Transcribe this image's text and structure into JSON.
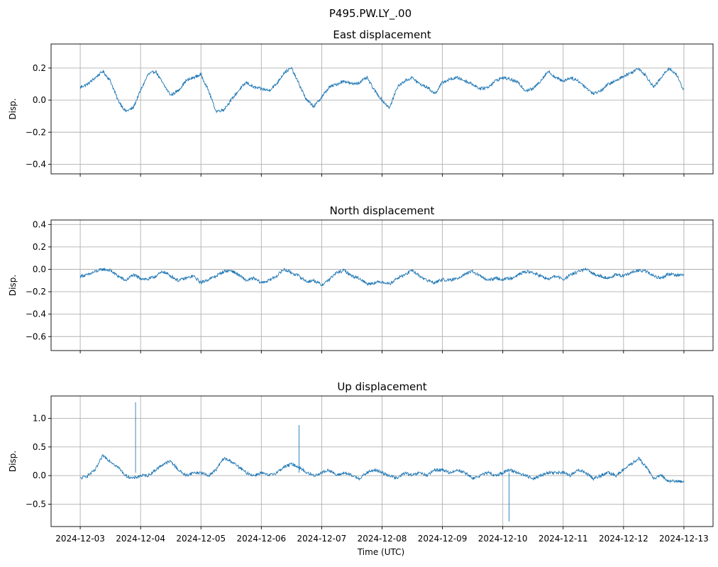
{
  "figure": {
    "suptitle": "P495.PW.LY_.00",
    "xlabel": "Time (UTC)",
    "line_color": "#1f77b4",
    "grid_color": "#b0b0b0"
  },
  "chart_data": [
    {
      "type": "line",
      "title": "East displacement",
      "ylabel": "Disp.",
      "xlabel": "",
      "grid": true,
      "xlim": [
        "2024-12-02 12:25",
        "2024-12-13 11:35"
      ],
      "ylim": [
        -0.46,
        0.35
      ],
      "yticks": [
        0.2,
        0.0,
        -0.2,
        -0.4
      ],
      "ytick_labels": [
        "0.2",
        "0.0",
        "−0.2",
        "−0.4"
      ],
      "xticks": [
        "2024-12-03",
        "2024-12-04",
        "2024-12-05",
        "2024-12-06",
        "2024-12-07",
        "2024-12-08",
        "2024-12-09",
        "2024-12-10",
        "2024-12-11",
        "2024-12-12",
        "2024-12-13"
      ],
      "xtick_labels_shown": false,
      "series": [
        {
          "x": [
            "2024-12-03 00:00",
            "2024-12-03 03:00",
            "2024-12-03 06:00",
            "2024-12-03 09:00",
            "2024-12-03 12:00",
            "2024-12-03 15:00",
            "2024-12-03 18:00",
            "2024-12-03 21:00",
            "2024-12-04 00:00",
            "2024-12-04 03:00",
            "2024-12-04 06:00",
            "2024-12-04 09:00",
            "2024-12-04 12:00",
            "2024-12-04 15:00",
            "2024-12-04 18:00",
            "2024-12-04 21:00",
            "2024-12-05 00:00",
            "2024-12-05 03:00",
            "2024-12-05 06:00",
            "2024-12-05 09:00",
            "2024-12-05 12:00",
            "2024-12-05 15:00",
            "2024-12-05 18:00",
            "2024-12-05 21:00",
            "2024-12-06 00:00",
            "2024-12-06 03:00",
            "2024-12-06 06:00",
            "2024-12-06 09:00",
            "2024-12-06 12:00",
            "2024-12-06 15:00",
            "2024-12-06 18:00",
            "2024-12-06 21:00",
            "2024-12-07 00:00",
            "2024-12-07 03:00",
            "2024-12-07 06:00",
            "2024-12-07 09:00",
            "2024-12-07 12:00",
            "2024-12-07 15:00",
            "2024-12-07 18:00",
            "2024-12-07 21:00",
            "2024-12-08 00:00",
            "2024-12-08 03:00",
            "2024-12-08 06:00",
            "2024-12-08 09:00",
            "2024-12-08 12:00",
            "2024-12-08 15:00",
            "2024-12-08 18:00",
            "2024-12-08 21:00",
            "2024-12-09 00:00",
            "2024-12-09 03:00",
            "2024-12-09 06:00",
            "2024-12-09 09:00",
            "2024-12-09 12:00",
            "2024-12-09 15:00",
            "2024-12-09 18:00",
            "2024-12-09 21:00",
            "2024-12-10 00:00",
            "2024-12-10 03:00",
            "2024-12-10 06:00",
            "2024-12-10 09:00",
            "2024-12-10 12:00",
            "2024-12-10 15:00",
            "2024-12-10 18:00",
            "2024-12-10 21:00",
            "2024-12-11 00:00",
            "2024-12-11 03:00",
            "2024-12-11 06:00",
            "2024-12-11 09:00",
            "2024-12-11 12:00",
            "2024-12-11 15:00",
            "2024-12-11 18:00",
            "2024-12-11 21:00",
            "2024-12-12 00:00",
            "2024-12-12 03:00",
            "2024-12-12 06:00",
            "2024-12-12 09:00",
            "2024-12-12 12:00",
            "2024-12-12 15:00",
            "2024-12-12 18:00",
            "2024-12-12 21:00",
            "2024-12-13 00:00"
          ],
          "y": [
            0.08,
            0.1,
            0.14,
            0.18,
            0.12,
            0.0,
            -0.07,
            -0.05,
            0.06,
            0.16,
            0.18,
            0.1,
            0.03,
            0.06,
            0.12,
            0.14,
            0.16,
            0.06,
            -0.07,
            -0.06,
            0.0,
            0.06,
            0.11,
            0.08,
            0.07,
            0.06,
            0.1,
            0.17,
            0.2,
            0.1,
            0.0,
            -0.04,
            0.02,
            0.08,
            0.1,
            0.12,
            0.1,
            0.11,
            0.14,
            0.06,
            0.0,
            -0.05,
            0.08,
            0.12,
            0.14,
            0.1,
            0.08,
            0.04,
            0.11,
            0.13,
            0.14,
            0.12,
            0.1,
            0.07,
            0.08,
            0.12,
            0.14,
            0.13,
            0.11,
            0.06,
            0.07,
            0.12,
            0.18,
            0.14,
            0.12,
            0.14,
            0.12,
            0.08,
            0.04,
            0.06,
            0.1,
            0.12,
            0.15,
            0.17,
            0.2,
            0.15,
            0.08,
            0.14,
            0.2,
            0.16,
            0.06
          ]
        }
      ]
    },
    {
      "type": "line",
      "title": "North displacement",
      "ylabel": "Disp.",
      "xlabel": "",
      "grid": true,
      "xlim": [
        "2024-12-02 12:25",
        "2024-12-13 11:35"
      ],
      "ylim": [
        -0.725,
        0.44
      ],
      "yticks": [
        0.4,
        0.2,
        0.0,
        -0.2,
        -0.4,
        -0.6
      ],
      "ytick_labels": [
        "0.4",
        "0.2",
        "0.0",
        "−0.2",
        "−0.4",
        "−0.6"
      ],
      "xticks": [
        "2024-12-03",
        "2024-12-04",
        "2024-12-05",
        "2024-12-06",
        "2024-12-07",
        "2024-12-08",
        "2024-12-09",
        "2024-12-10",
        "2024-12-11",
        "2024-12-12",
        "2024-12-13"
      ],
      "xtick_labels_shown": false,
      "series": [
        {
          "x": [
            "2024-12-03 00:00",
            "2024-12-03 03:00",
            "2024-12-03 06:00",
            "2024-12-03 09:00",
            "2024-12-03 12:00",
            "2024-12-03 15:00",
            "2024-12-03 18:00",
            "2024-12-03 21:00",
            "2024-12-04 00:00",
            "2024-12-04 03:00",
            "2024-12-04 06:00",
            "2024-12-04 09:00",
            "2024-12-04 12:00",
            "2024-12-04 15:00",
            "2024-12-04 18:00",
            "2024-12-04 21:00",
            "2024-12-05 00:00",
            "2024-12-05 03:00",
            "2024-12-05 06:00",
            "2024-12-05 09:00",
            "2024-12-05 12:00",
            "2024-12-05 15:00",
            "2024-12-05 18:00",
            "2024-12-05 21:00",
            "2024-12-06 00:00",
            "2024-12-06 03:00",
            "2024-12-06 06:00",
            "2024-12-06 09:00",
            "2024-12-06 12:00",
            "2024-12-06 15:00",
            "2024-12-06 18:00",
            "2024-12-06 21:00",
            "2024-12-07 00:00",
            "2024-12-07 03:00",
            "2024-12-07 06:00",
            "2024-12-07 09:00",
            "2024-12-07 12:00",
            "2024-12-07 15:00",
            "2024-12-07 18:00",
            "2024-12-07 21:00",
            "2024-12-08 00:00",
            "2024-12-08 03:00",
            "2024-12-08 06:00",
            "2024-12-08 09:00",
            "2024-12-08 12:00",
            "2024-12-08 15:00",
            "2024-12-08 18:00",
            "2024-12-08 21:00",
            "2024-12-09 00:00",
            "2024-12-09 03:00",
            "2024-12-09 06:00",
            "2024-12-09 09:00",
            "2024-12-09 12:00",
            "2024-12-09 15:00",
            "2024-12-09 18:00",
            "2024-12-09 21:00",
            "2024-12-10 00:00",
            "2024-12-10 03:00",
            "2024-12-10 06:00",
            "2024-12-10 09:00",
            "2024-12-10 12:00",
            "2024-12-10 15:00",
            "2024-12-10 18:00",
            "2024-12-10 21:00",
            "2024-12-11 00:00",
            "2024-12-11 03:00",
            "2024-12-11 06:00",
            "2024-12-11 09:00",
            "2024-12-11 12:00",
            "2024-12-11 15:00",
            "2024-12-11 18:00",
            "2024-12-11 21:00",
            "2024-12-12 00:00",
            "2024-12-12 03:00",
            "2024-12-12 06:00",
            "2024-12-12 09:00",
            "2024-12-12 12:00",
            "2024-12-12 15:00",
            "2024-12-12 18:00",
            "2024-12-12 21:00",
            "2024-12-13 00:00"
          ],
          "y": [
            -0.06,
            -0.05,
            -0.02,
            0.0,
            -0.01,
            -0.06,
            -0.1,
            -0.05,
            -0.08,
            -0.09,
            -0.06,
            -0.02,
            -0.06,
            -0.1,
            -0.08,
            -0.06,
            -0.12,
            -0.09,
            -0.06,
            -0.02,
            -0.01,
            -0.05,
            -0.1,
            -0.08,
            -0.12,
            -0.1,
            -0.06,
            0.0,
            -0.03,
            -0.06,
            -0.11,
            -0.1,
            -0.14,
            -0.09,
            -0.03,
            -0.01,
            -0.06,
            -0.08,
            -0.13,
            -0.12,
            -0.11,
            -0.13,
            -0.08,
            -0.05,
            -0.01,
            -0.06,
            -0.1,
            -0.12,
            -0.09,
            -0.1,
            -0.08,
            -0.04,
            -0.02,
            -0.06,
            -0.1,
            -0.08,
            -0.09,
            -0.08,
            -0.05,
            -0.02,
            -0.03,
            -0.06,
            -0.09,
            -0.06,
            -0.09,
            -0.05,
            -0.02,
            0.0,
            -0.04,
            -0.06,
            -0.08,
            -0.05,
            -0.06,
            -0.03,
            -0.01,
            -0.02,
            -0.06,
            -0.08,
            -0.04,
            -0.05,
            -0.05
          ]
        }
      ]
    },
    {
      "type": "line",
      "title": "Up displacement",
      "ylabel": "Disp.",
      "xlabel": "Time (UTC)",
      "grid": true,
      "xlim": [
        "2024-12-02 12:25",
        "2024-12-13 11:35"
      ],
      "ylim": [
        -0.89,
        1.39
      ],
      "yticks": [
        1.0,
        0.5,
        0.0,
        -0.5
      ],
      "ytick_labels": [
        "1.0",
        "0.5",
        "0.0",
        "−0.5"
      ],
      "xticks": [
        "2024-12-03",
        "2024-12-04",
        "2024-12-05",
        "2024-12-06",
        "2024-12-07",
        "2024-12-08",
        "2024-12-09",
        "2024-12-10",
        "2024-12-11",
        "2024-12-12",
        "2024-12-13"
      ],
      "xtick_labels": [
        "2024-12-03",
        "2024-12-04",
        "2024-12-05",
        "2024-12-06",
        "2024-12-07",
        "2024-12-08",
        "2024-12-09",
        "2024-12-10",
        "2024-12-11",
        "2024-12-12",
        "2024-12-13"
      ],
      "xtick_labels_shown": true,
      "series": [
        {
          "x": [
            "2024-12-03 00:00",
            "2024-12-03 03:00",
            "2024-12-03 06:00",
            "2024-12-03 09:00",
            "2024-12-03 12:00",
            "2024-12-03 15:00",
            "2024-12-03 18:00",
            "2024-12-03 21:00",
            "2024-12-04 00:00",
            "2024-12-04 03:00",
            "2024-12-04 06:00",
            "2024-12-04 09:00",
            "2024-12-04 12:00",
            "2024-12-04 15:00",
            "2024-12-04 18:00",
            "2024-12-04 21:00",
            "2024-12-05 00:00",
            "2024-12-05 03:00",
            "2024-12-05 06:00",
            "2024-12-05 09:00",
            "2024-12-05 12:00",
            "2024-12-05 15:00",
            "2024-12-05 18:00",
            "2024-12-05 21:00",
            "2024-12-06 00:00",
            "2024-12-06 03:00",
            "2024-12-06 06:00",
            "2024-12-06 09:00",
            "2024-12-06 12:00",
            "2024-12-06 15:00",
            "2024-12-06 18:00",
            "2024-12-06 21:00",
            "2024-12-07 00:00",
            "2024-12-07 03:00",
            "2024-12-07 06:00",
            "2024-12-07 09:00",
            "2024-12-07 12:00",
            "2024-12-07 15:00",
            "2024-12-07 18:00",
            "2024-12-07 21:00",
            "2024-12-08 00:00",
            "2024-12-08 03:00",
            "2024-12-08 06:00",
            "2024-12-08 09:00",
            "2024-12-08 12:00",
            "2024-12-08 15:00",
            "2024-12-08 18:00",
            "2024-12-08 21:00",
            "2024-12-09 00:00",
            "2024-12-09 03:00",
            "2024-12-09 06:00",
            "2024-12-09 09:00",
            "2024-12-09 12:00",
            "2024-12-09 15:00",
            "2024-12-09 18:00",
            "2024-12-09 21:00",
            "2024-12-10 00:00",
            "2024-12-10 03:00",
            "2024-12-10 06:00",
            "2024-12-10 09:00",
            "2024-12-10 12:00",
            "2024-12-10 15:00",
            "2024-12-10 18:00",
            "2024-12-10 21:00",
            "2024-12-11 00:00",
            "2024-12-11 03:00",
            "2024-12-11 06:00",
            "2024-12-11 09:00",
            "2024-12-11 12:00",
            "2024-12-11 15:00",
            "2024-12-11 18:00",
            "2024-12-11 21:00",
            "2024-12-12 00:00",
            "2024-12-12 03:00",
            "2024-12-12 06:00",
            "2024-12-12 09:00",
            "2024-12-12 12:00",
            "2024-12-12 15:00",
            "2024-12-12 18:00",
            "2024-12-12 21:00",
            "2024-12-13 00:00"
          ],
          "y": [
            -0.05,
            0.0,
            0.1,
            0.35,
            0.25,
            0.15,
            0.0,
            -0.05,
            0.0,
            0.0,
            0.1,
            0.2,
            0.25,
            0.1,
            0.0,
            0.05,
            0.05,
            0.0,
            0.1,
            0.3,
            0.25,
            0.15,
            0.05,
            0.0,
            0.05,
            0.0,
            0.05,
            0.15,
            0.2,
            0.15,
            0.05,
            0.0,
            0.05,
            0.1,
            0.0,
            0.05,
            0.0,
            -0.05,
            0.05,
            0.1,
            0.05,
            0.0,
            -0.05,
            0.05,
            0.0,
            0.05,
            0.0,
            0.1,
            0.1,
            0.05,
            0.1,
            0.05,
            -0.05,
            0.0,
            0.05,
            0.0,
            0.05,
            0.1,
            0.05,
            0.0,
            -0.05,
            0.0,
            0.05,
            0.05,
            0.05,
            0.0,
            0.1,
            0.05,
            -0.05,
            0.0,
            0.05,
            0.0,
            0.1,
            0.2,
            0.3,
            0.15,
            -0.05,
            0.0,
            -0.1,
            -0.1,
            -0.1
          ]
        }
      ],
      "spikes": [
        {
          "x": "2024-12-03 22:00",
          "y": 1.28
        },
        {
          "x": "2024-12-06 15:00",
          "y": 0.88
        },
        {
          "x": "2024-12-10 02:30",
          "y": -0.8
        }
      ]
    }
  ]
}
